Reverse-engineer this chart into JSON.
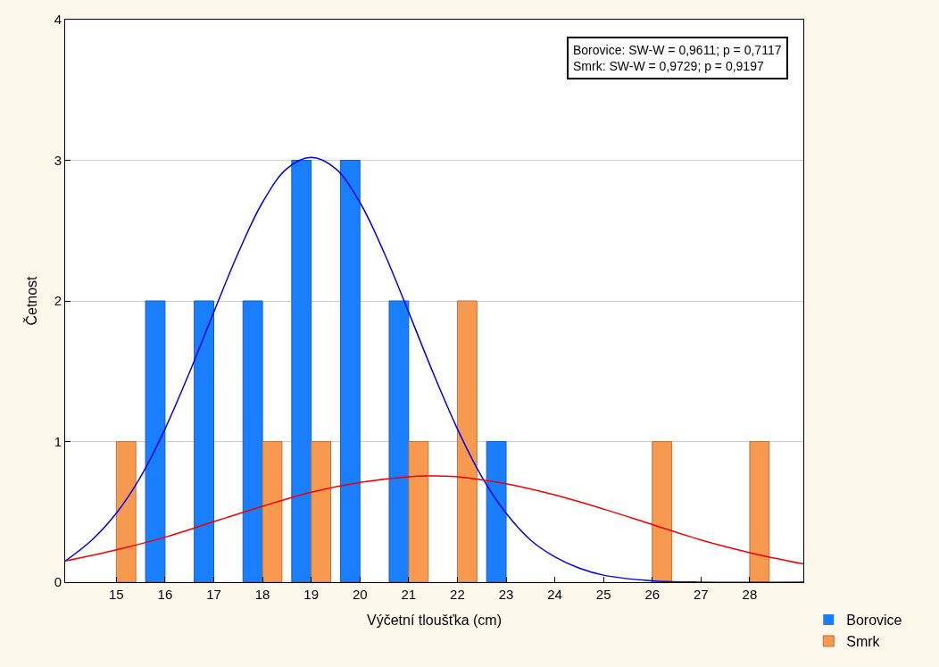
{
  "chart_data": {
    "type": "bar",
    "xlabel": "Výčetní tloušťka (cm)",
    "ylabel": "Četnost",
    "x": [
      15,
      16,
      17,
      18,
      19,
      20,
      21,
      22,
      23,
      24,
      25,
      26,
      27,
      28
    ],
    "series": [
      {
        "name": "Borovice",
        "color": "#1a7fff",
        "values": [
          0,
          2,
          2,
          2,
          3,
          3,
          2,
          0,
          1,
          0,
          0,
          0,
          0,
          0
        ]
      },
      {
        "name": "Smrk",
        "color": "#f79a50",
        "values": [
          1,
          0,
          0,
          1,
          1,
          0,
          1,
          2,
          0,
          0,
          0,
          1,
          0,
          1
        ]
      },
      {
        "type": "line",
        "color": "#0000ee",
        "x": [
          13.95,
          14.5,
          15,
          15.5,
          16,
          16.5,
          17,
          17.5,
          18,
          18.5,
          19,
          19.5,
          20,
          20.5,
          21,
          21.5,
          22,
          22.5,
          23,
          23.5,
          24,
          24.5,
          25,
          26,
          27,
          29.1
        ],
        "values": [
          0.15,
          0.3,
          0.49,
          0.75,
          1.09,
          1.49,
          1.92,
          2.34,
          2.7,
          2.94,
          3.02,
          2.94,
          2.7,
          2.34,
          1.92,
          1.49,
          1.09,
          0.75,
          0.49,
          0.3,
          0.18,
          0.1,
          0.05,
          0.01,
          0,
          0
        ]
      },
      {
        "type": "line",
        "color": "#ee0000",
        "x": [
          13.95,
          15,
          16,
          17,
          18,
          19,
          20,
          21,
          21.4,
          22,
          23,
          24,
          25,
          26,
          27,
          28,
          29.1
        ],
        "values": [
          0.15,
          0.23,
          0.32,
          0.43,
          0.54,
          0.64,
          0.71,
          0.75,
          0.755,
          0.75,
          0.7,
          0.62,
          0.52,
          0.41,
          0.3,
          0.21,
          0.13
        ]
      }
    ],
    "xlim": [
      13.95,
      29.1
    ],
    "xticks": [
      15,
      16,
      17,
      18,
      19,
      20,
      21,
      22,
      23,
      24,
      25,
      26,
      27,
      28
    ],
    "ylim": [
      0,
      4
    ],
    "yticks": [
      0,
      1,
      2,
      3,
      4
    ],
    "grid": "y",
    "legend": "bottom right",
    "annotations": [
      "Borovice: SW-W = 0,9611; p = 0,7117",
      "Smrk: SW-W = 0,9729; p = 0,9197"
    ]
  }
}
